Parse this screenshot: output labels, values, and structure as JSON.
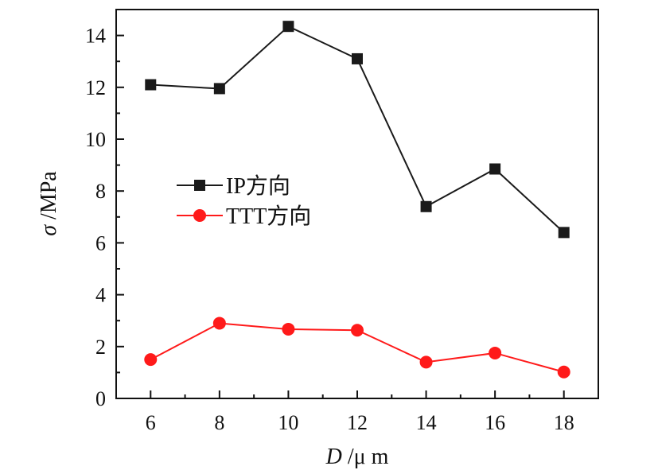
{
  "chart_data": {
    "type": "line",
    "x": [
      6,
      8,
      10,
      12,
      14,
      16,
      18
    ],
    "series": [
      {
        "name": "IP方向",
        "values": [
          12.1,
          11.95,
          14.35,
          13.1,
          7.4,
          8.85,
          6.4
        ],
        "color": "#1a1a1a",
        "marker": "square"
      },
      {
        "name": "TTT方向",
        "values": [
          1.5,
          2.9,
          2.67,
          2.63,
          1.4,
          1.75,
          1.02
        ],
        "color": "#ff1a1a",
        "marker": "circle"
      }
    ],
    "xlabel_italic": "D",
    "xlabel_unit": " /μ m",
    "ylabel_italic": "σ",
    "ylabel_unit": " /MPa",
    "xlim": [
      5,
      19
    ],
    "ylim": [
      0,
      15
    ],
    "xticks": [
      6,
      8,
      10,
      12,
      14,
      16,
      18
    ],
    "yticks": [
      0,
      2,
      4,
      6,
      8,
      10,
      12,
      14
    ],
    "grid": false,
    "legend_position": "center-left"
  }
}
